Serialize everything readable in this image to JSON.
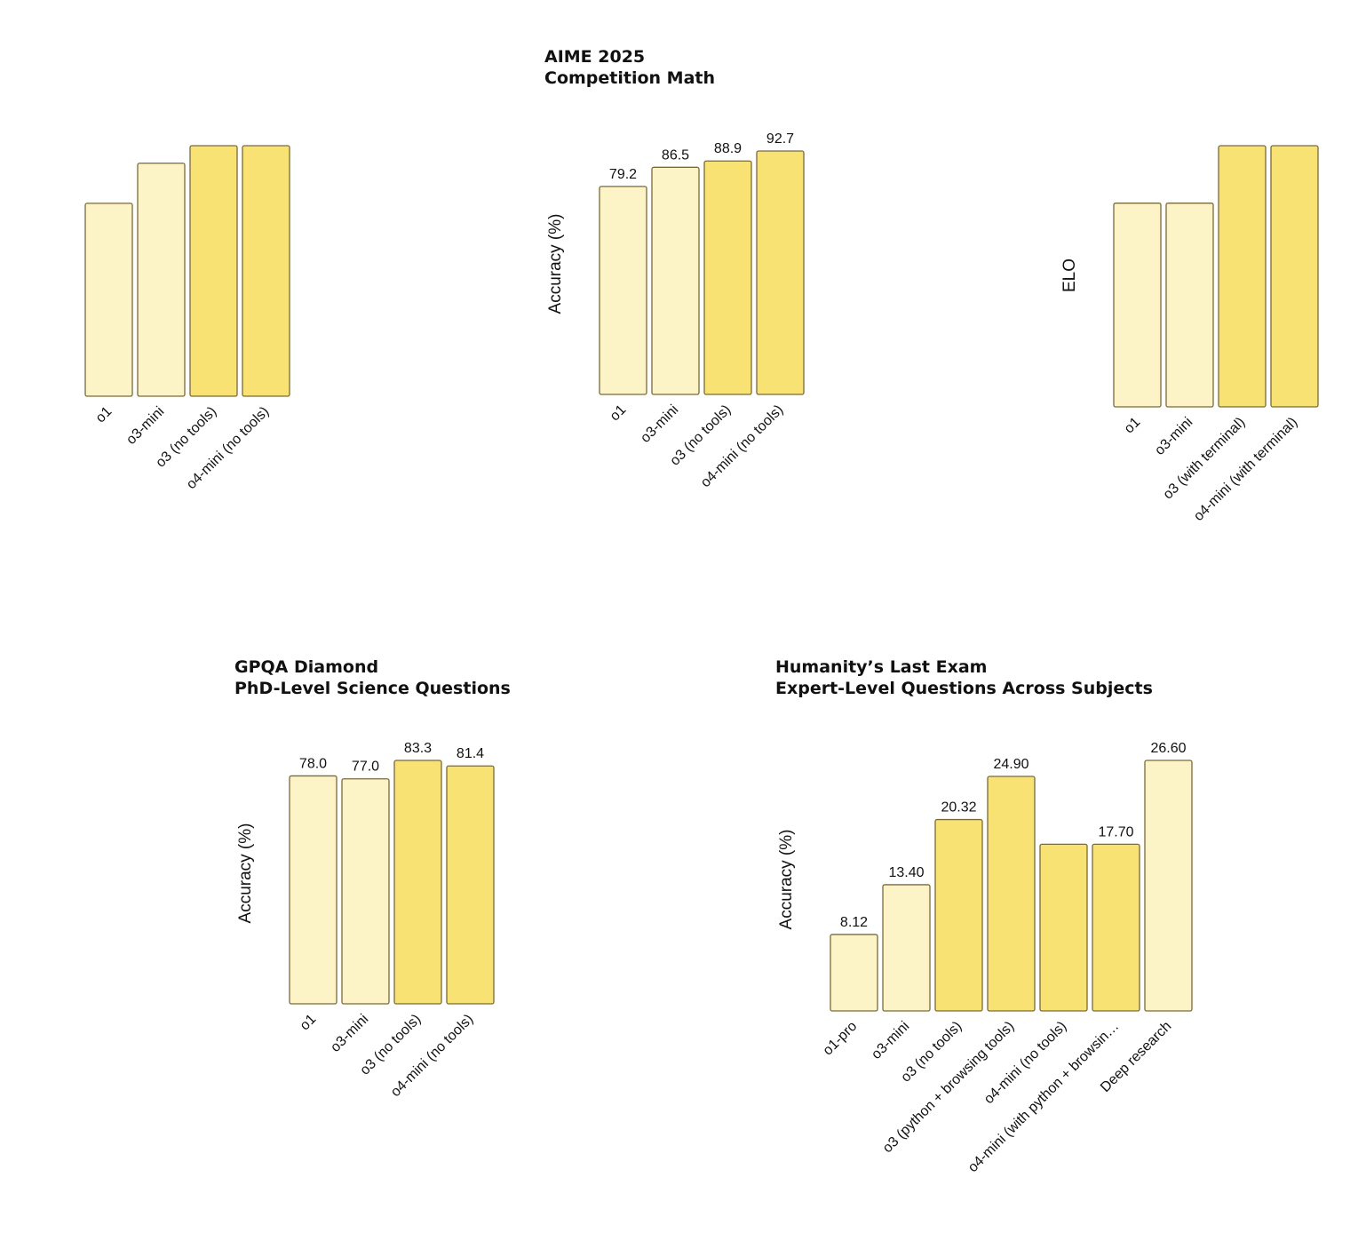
{
  "colors": {
    "light": "#FCF3C6",
    "dark": "#F8E274",
    "stroke": "#7A6A3A",
    "text": "#111111"
  },
  "chart_data": [
    {
      "type": "bar",
      "title": "",
      "subtitle": "",
      "ylabel": "",
      "categories": [
        "o1",
        "o3-mini",
        "o3 (no tools)",
        "o4-mini (no tools)"
      ],
      "values": [
        null,
        null,
        null,
        null
      ],
      "relative_heights": [
        0.77,
        0.93,
        1.0,
        1.0
      ],
      "colors": [
        "light",
        "light",
        "dark",
        "dark"
      ],
      "show_value_labels": false
    },
    {
      "type": "bar",
      "title": "AIME 2025",
      "subtitle": "Competition Math",
      "ylabel": "Accuracy (%)",
      "categories": [
        "o1",
        "o3-mini",
        "o3 (no tools)",
        "o4-mini (no tools)"
      ],
      "values": [
        79.2,
        86.5,
        88.9,
        92.7
      ],
      "value_labels": [
        "79.2",
        "86.5",
        "88.9",
        "92.7"
      ],
      "colors": [
        "light",
        "light",
        "dark",
        "dark"
      ],
      "show_value_labels": true
    },
    {
      "type": "bar",
      "title": "",
      "subtitle": "",
      "ylabel": "ELO",
      "categories": [
        "o1",
        "o3-mini",
        "o3 (with terminal)",
        "o4-mini (with terminal)"
      ],
      "values": [
        null,
        null,
        null,
        null
      ],
      "relative_heights": [
        0.78,
        0.78,
        1.0,
        1.0
      ],
      "colors": [
        "light",
        "light",
        "dark",
        "dark"
      ],
      "show_value_labels": false
    },
    {
      "type": "bar",
      "title": "GPQA Diamond",
      "subtitle": "PhD-Level Science Questions",
      "ylabel": "Accuracy (%)",
      "categories": [
        "o1",
        "o3-mini",
        "o3 (no tools)",
        "o4-mini (no tools)"
      ],
      "values": [
        78.0,
        77.0,
        83.3,
        81.4
      ],
      "value_labels": [
        "78.0",
        "77.0",
        "83.3",
        "81.4"
      ],
      "colors": [
        "light",
        "light",
        "dark",
        "dark"
      ],
      "show_value_labels": true
    },
    {
      "type": "bar",
      "title": "Humanity’s Last Exam",
      "subtitle": "Expert-Level Questions Across Subjects",
      "ylabel": "Accuracy (%)",
      "categories": [
        "o1-pro",
        "o3-mini",
        "o3 (no tools)",
        "o3 (python + browsing tools)",
        "o4-mini (no tools)",
        "o4-mini (with python + browsing tools)",
        "Deep research"
      ],
      "tick_labels": [
        "o1-pro",
        "o3-mini",
        "o3 (no tools)",
        "o3 (python + browsing tools)",
        "o4-mini (no tools)",
        "o4-mini (with python + browsin…",
        "Deep research"
      ],
      "values": [
        8.12,
        13.4,
        20.32,
        24.9,
        17.7,
        17.7,
        26.6
      ],
      "value_labels": [
        "8.12",
        "13.40",
        "20.32",
        "24.90",
        "",
        "17.70",
        "26.60"
      ],
      "colors": [
        "light",
        "light",
        "dark",
        "dark",
        "dark",
        "dark",
        "light"
      ],
      "show_value_labels": true
    }
  ]
}
